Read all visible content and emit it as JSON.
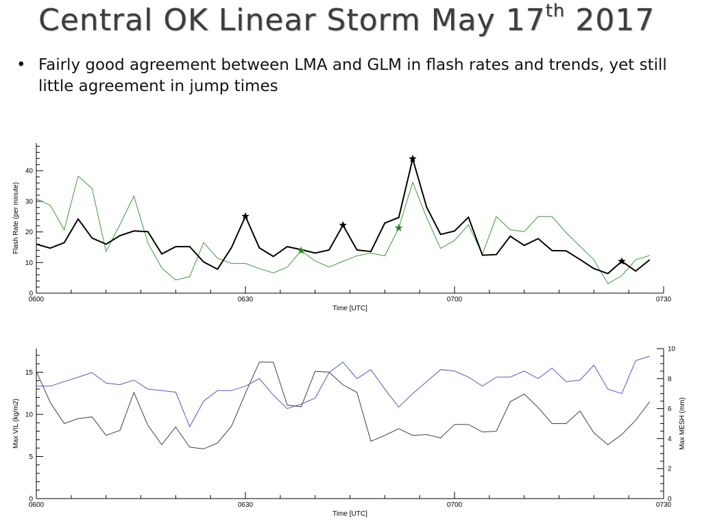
{
  "slide": {
    "title": "Central OK Linear Storm May 17",
    "title_sup": "th",
    "title_year": "2017",
    "bullet_symbol": "•",
    "bullet_text": "Fairly good agreement between LMA and GLM in flash rates and trends, yet still little agreement in jump times"
  },
  "chart_data": [
    {
      "type": "line",
      "xlabel": "Time [UTC]",
      "ylabel": "Flash Rate (per minute)",
      "x_ticks": [
        0,
        30,
        60,
        90
      ],
      "x_tick_labels": [
        "0600",
        "0630",
        "0700",
        "0730"
      ],
      "xlim": [
        0,
        90
      ],
      "ylim": [
        0,
        49
      ],
      "y_ticks": [
        0,
        10,
        20,
        30,
        40
      ],
      "series": [
        {
          "color": "#000000",
          "x": [
            0,
            2,
            4,
            6,
            8,
            10,
            12,
            14,
            16,
            18,
            20,
            22,
            24,
            26,
            28,
            30,
            32,
            34,
            36,
            38,
            40,
            42,
            44,
            46,
            48,
            50,
            52,
            54,
            56,
            58,
            60,
            62,
            64,
            66,
            68,
            70,
            72,
            74,
            76,
            78,
            80,
            82,
            84,
            86,
            88
          ],
          "values": [
            16,
            14.7,
            16.5,
            24.2,
            18,
            16,
            18.8,
            20.3,
            20.1,
            12.8,
            15.2,
            15.2,
            10.2,
            7.8,
            14.9,
            25.1,
            14.8,
            12,
            15.2,
            14.2,
            13.1,
            14.1,
            22.2,
            14.1,
            13.6,
            22.9,
            24.7,
            43.9,
            28.1,
            19.2,
            20.3,
            24.8,
            12.4,
            12.6,
            18.6,
            15.6,
            17.8,
            13.9,
            13.8,
            11,
            8,
            6.4,
            10.4,
            7.2,
            10.9
          ]
        },
        {
          "color": "#3a9a3a",
          "x": [
            0,
            2,
            4,
            6,
            8,
            10,
            12,
            14,
            16,
            18,
            20,
            22,
            24,
            26,
            28,
            30,
            32,
            34,
            36,
            38,
            40,
            42,
            44,
            46,
            48,
            50,
            52,
            54,
            56,
            58,
            60,
            62,
            64,
            66,
            68,
            70,
            72,
            74,
            76,
            78,
            80,
            82,
            84,
            86,
            88
          ],
          "values": [
            30.8,
            28.7,
            20.7,
            38.2,
            34.2,
            13.6,
            22.4,
            31.7,
            16.4,
            8.2,
            4.3,
            5.4,
            16.5,
            11.4,
            9.7,
            9.7,
            8,
            6.6,
            8.5,
            13.9,
            10.5,
            8.5,
            10.4,
            12.2,
            13.1,
            12.2,
            21.3,
            36.2,
            24.7,
            14.6,
            17.2,
            22.3,
            12.7,
            25,
            20.7,
            20.1,
            25,
            25,
            19.8,
            15.3,
            10.9,
            3.1,
            5.7,
            10.9,
            12.3
          ]
        }
      ],
      "markers": [
        {
          "color": "#000000",
          "x": [
            30,
            44,
            54,
            84
          ],
          "y": [
            25.1,
            22.2,
            43.9,
            10.4
          ]
        },
        {
          "color": "#1f8a1f",
          "x": [
            38,
            52
          ],
          "y": [
            13.9,
            21.3
          ]
        }
      ]
    },
    {
      "type": "line",
      "xlabel": "Time [UTC]",
      "ylabel": "Max VIL (kg/m2)",
      "ylabel_right": "Max MESH (mm)",
      "x_ticks": [
        0,
        30,
        60,
        90
      ],
      "x_tick_labels": [
        "0600",
        "0630",
        "0700",
        "0730"
      ],
      "xlim": [
        0,
        90
      ],
      "ylim": [
        0,
        17.8
      ],
      "y_ticks": [
        0,
        5,
        10,
        15
      ],
      "ylim_right": [
        0,
        10
      ],
      "y_ticks_right": [
        0,
        2,
        4,
        6,
        8,
        10
      ],
      "series": [
        {
          "color": "#404040",
          "axis": "left",
          "x": [
            0,
            2,
            4,
            6,
            8,
            10,
            12,
            14,
            16,
            18,
            20,
            22,
            24,
            26,
            28,
            30,
            32,
            34,
            36,
            38,
            40,
            42,
            44,
            46,
            48,
            50,
            52,
            54,
            56,
            58,
            60,
            62,
            64,
            66,
            68,
            70,
            72,
            74,
            76,
            78,
            80,
            82,
            84,
            86,
            88
          ],
          "values": [
            15.1,
            11.4,
            8.9,
            9.5,
            9.7,
            7.5,
            8.1,
            12.6,
            8.7,
            6.4,
            8.5,
            6.1,
            5.9,
            6.6,
            8.6,
            12.5,
            16.2,
            16.2,
            11.1,
            10.9,
            15.1,
            15,
            13.5,
            12.6,
            6.8,
            7.5,
            8.3,
            7.5,
            7.6,
            7.2,
            8.8,
            8.8,
            7.9,
            8,
            11.5,
            12.4,
            10.8,
            8.9,
            8.9,
            10.4,
            7.8,
            6.4,
            7.6,
            9.3,
            11.5
          ]
        },
        {
          "color": "#5555cc",
          "axis": "right",
          "x": [
            0,
            2,
            4,
            6,
            8,
            10,
            12,
            14,
            16,
            18,
            20,
            22,
            24,
            26,
            28,
            30,
            32,
            34,
            36,
            38,
            40,
            42,
            44,
            46,
            48,
            50,
            52,
            54,
            56,
            58,
            60,
            62,
            64,
            66,
            68,
            70,
            72,
            74,
            76,
            78,
            80,
            82,
            84,
            86,
            88
          ],
          "values": [
            7.5,
            7.5,
            7.8,
            8.1,
            8.4,
            7.7,
            7.6,
            7.9,
            7.3,
            7.2,
            7.1,
            4.8,
            6.5,
            7.2,
            7.2,
            7.5,
            8,
            6.9,
            6,
            6.3,
            6.7,
            8.4,
            9.1,
            8,
            8.6,
            7.3,
            6.1,
            7,
            7.8,
            8.6,
            8.5,
            8.1,
            7.5,
            8.1,
            8.1,
            8.5,
            8,
            8.7,
            7.8,
            7.9,
            8.9,
            7.3,
            7,
            9.2,
            9.5
          ]
        }
      ]
    }
  ]
}
